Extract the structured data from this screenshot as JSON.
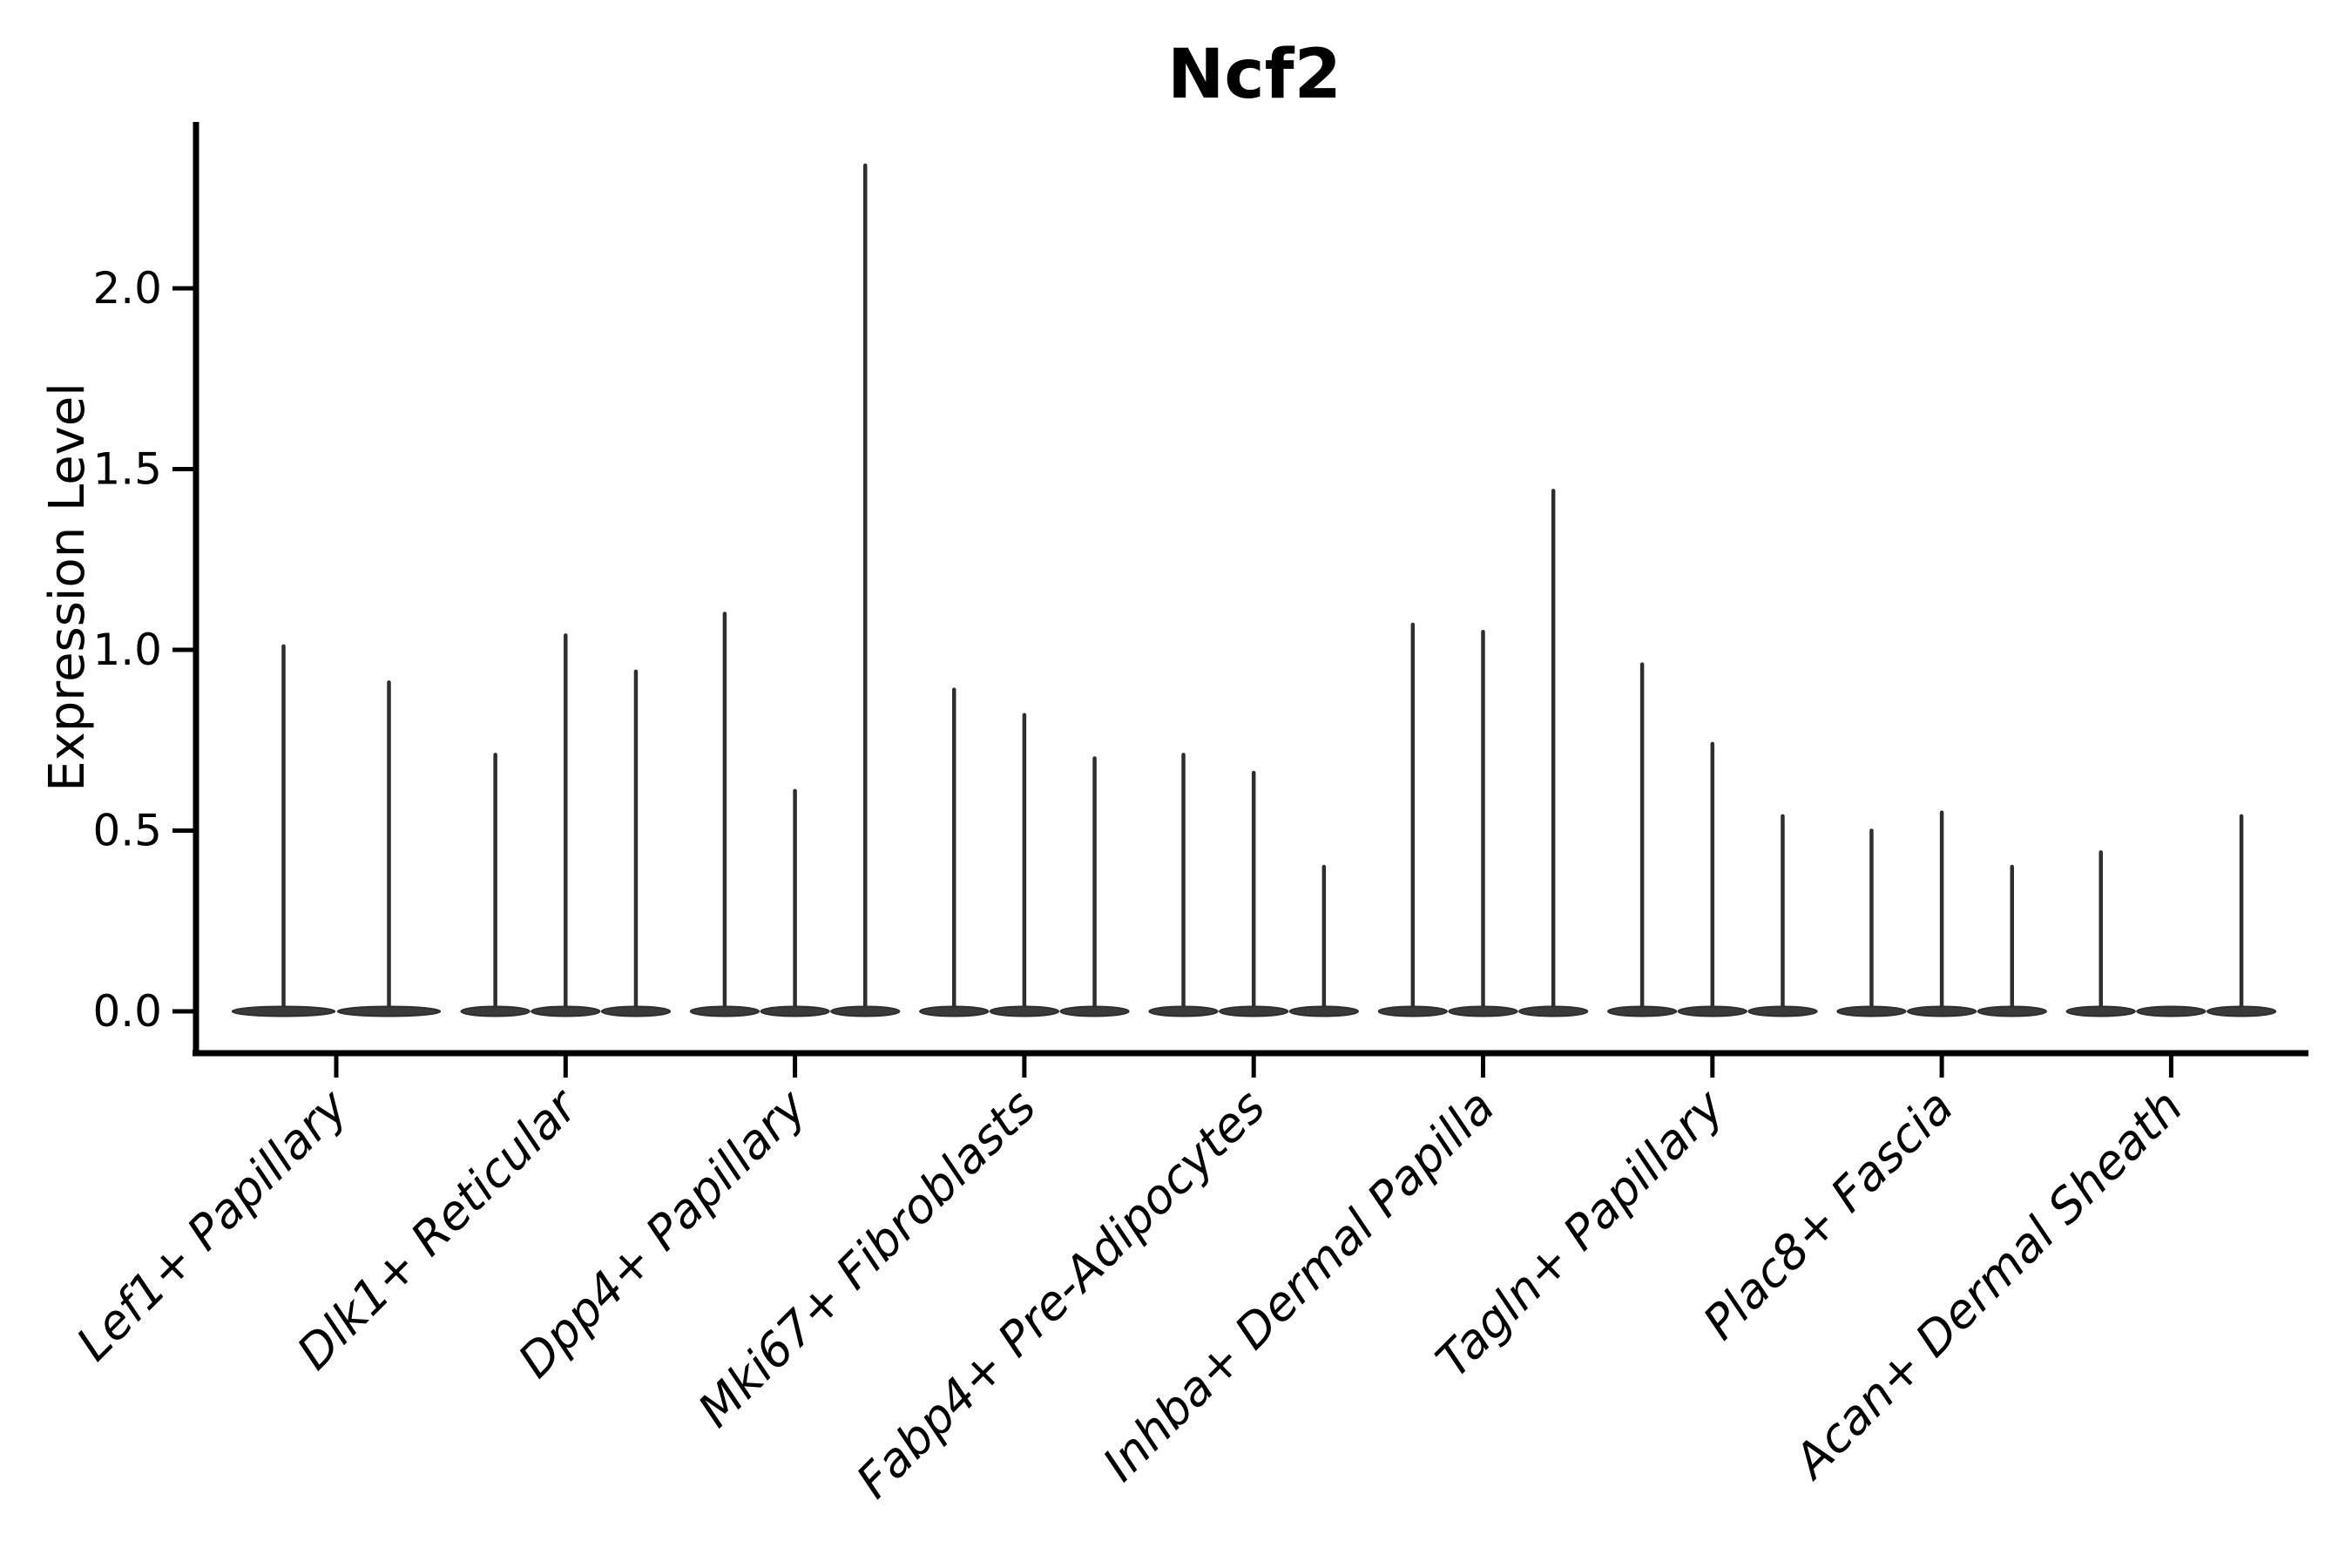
{
  "figure": {
    "background_color": "#ffffff",
    "text_color": "#000000"
  },
  "chart_data": {
    "type": "violin",
    "title": "Ncf2",
    "ylabel": "Expression Level",
    "xlabel": "",
    "grid": false,
    "legend_position": "none",
    "ylim": [
      -0.12,
      2.46
    ],
    "yticks": {
      "values": [
        0.0,
        0.5,
        1.0,
        1.5,
        2.0
      ],
      "labels": [
        "0.0",
        "0.5",
        "1.0",
        "1.5",
        "2.0"
      ]
    },
    "x_tick_label_rotation_deg": 45,
    "x_tick_label_style": "italic",
    "violin_description": "Each category shows 2-3 very thin violins: a flattened dark blob of near-zero expression at y=0 plus a thin vertical tail reaching the max expression value.",
    "colors": {
      "violin_fill": "#3a3a3a",
      "violin_stroke": "#2e2e2e",
      "axis_color": "#000000"
    },
    "categories": [
      {
        "label": "Lef1+ Papillary",
        "violin_maxima": [
          1.01,
          0.91
        ]
      },
      {
        "label": "Dlk1+ Reticular",
        "violin_maxima": [
          0.71,
          1.04,
          0.94
        ]
      },
      {
        "label": "Dpp4+ Papillary",
        "violin_maxima": [
          1.1,
          0.61,
          2.34
        ]
      },
      {
        "label": "Mki67+ Fibroblasts",
        "violin_maxima": [
          0.89,
          0.82,
          0.7
        ]
      },
      {
        "label": "Fabp4+ Pre-Adipocytes",
        "violin_maxima": [
          0.71,
          0.66,
          0.4
        ]
      },
      {
        "label": "Inhba+ Dermal Papilla",
        "violin_maxima": [
          1.07,
          1.05,
          1.44
        ]
      },
      {
        "label": "Tagln+ Papillary",
        "violin_maxima": [
          0.96,
          0.74,
          0.54
        ]
      },
      {
        "label": "Plac8+ Fascia",
        "violin_maxima": [
          0.5,
          0.55,
          0.4
        ]
      },
      {
        "label": "Acan+ Dermal Sheath",
        "violin_maxima": [
          0.44,
          0.0,
          0.54
        ]
      }
    ]
  }
}
